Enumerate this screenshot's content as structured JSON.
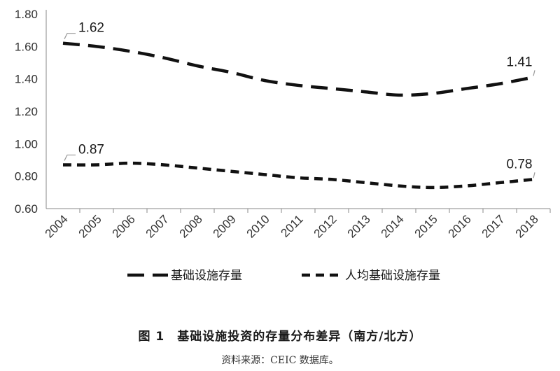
{
  "chart_data": {
    "type": "line",
    "x": [
      "2004",
      "2005",
      "2006",
      "2007",
      "2008",
      "2009",
      "2010",
      "2011",
      "2012",
      "2013",
      "2014",
      "2015",
      "2016",
      "2017",
      "2018"
    ],
    "series": [
      {
        "name": "基础设施存量",
        "values": [
          1.62,
          1.6,
          1.57,
          1.53,
          1.48,
          1.44,
          1.39,
          1.36,
          1.34,
          1.32,
          1.3,
          1.31,
          1.34,
          1.37,
          1.41
        ],
        "style": "long-dash",
        "color": "#111111"
      },
      {
        "name": "人均基础设施存量",
        "values": [
          0.87,
          0.87,
          0.88,
          0.87,
          0.85,
          0.83,
          0.81,
          0.79,
          0.78,
          0.76,
          0.74,
          0.73,
          0.74,
          0.76,
          0.78
        ],
        "style": "short-dash",
        "color": "#111111"
      }
    ],
    "annotations": [
      {
        "series": 0,
        "index": 0,
        "text": "1.62"
      },
      {
        "series": 0,
        "index": 14,
        "text": "1.41"
      },
      {
        "series": 1,
        "index": 0,
        "text": "0.87"
      },
      {
        "series": 1,
        "index": 14,
        "text": "0.78"
      }
    ],
    "yticks": [
      "0.60",
      "0.80",
      "1.00",
      "1.20",
      "1.40",
      "1.60",
      "1.80"
    ],
    "ylim": [
      0.6,
      1.8
    ],
    "grid": false,
    "legend_position": "bottom",
    "xlabel": "",
    "ylabel": ""
  },
  "figure_title": "图 1　基础设施投资的存量分布差异（南方/北方）",
  "source_note": "资料来源：CEIC 数据库。"
}
